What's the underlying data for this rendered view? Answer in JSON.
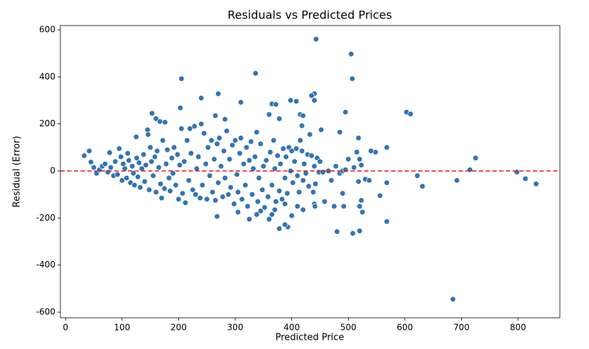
{
  "chart_data": {
    "type": "scatter",
    "title": "Residuals vs Predicted Prices",
    "x_label": "Predicted Price",
    "y_label": "Residual (Error)",
    "color": "#3274b5",
    "xlim": [
      -9,
      874
    ],
    "ylim": [
      -624,
      618
    ],
    "xticks": [
      0,
      100,
      200,
      300,
      400,
      500,
      600,
      700,
      800
    ],
    "yticks": [
      -600,
      -400,
      -200,
      0,
      200,
      400,
      600
    ],
    "reference_line": {
      "y": 0,
      "color": "#e8141a"
    },
    "x": [
      443,
      505,
      336,
      507,
      205,
      270,
      440,
      435,
      240,
      398,
      408,
      440,
      310,
      365,
      372,
      495,
      603,
      610,
      203,
      415,
      420,
      265,
      282,
      378,
      153,
      160,
      167,
      176,
      485,
      452,
      418,
      725,
      715,
      798,
      622,
      813,
      832,
      692,
      631,
      568,
      556,
      568,
      685,
      480,
      508,
      520,
      525,
      520,
      523,
      492,
      475,
      490,
      548,
      540,
      568,
      515,
      518,
      520,
      500,
      510,
      523,
      530,
      537,
      518,
      378,
      393,
      388,
      338,
      325,
      305,
      268,
      360,
      365,
      345,
      400,
      410,
      420,
      440,
      458,
      441,
      388,
      370,
      33,
      42,
      45,
      50,
      55,
      60,
      65,
      70,
      75,
      78,
      80,
      85,
      88,
      92,
      95,
      98,
      100,
      102,
      105,
      108,
      110,
      112,
      115,
      118,
      120,
      122,
      125,
      126,
      128,
      130,
      132,
      135,
      138,
      140,
      142,
      145,
      146,
      148,
      150,
      152,
      155,
      158,
      160,
      162,
      165,
      168,
      170,
      172,
      175,
      178,
      180,
      183,
      185,
      188,
      190,
      192,
      195,
      198,
      200,
      202,
      205,
      207,
      210,
      212,
      215,
      218,
      220,
      222,
      225,
      228,
      230,
      232,
      235,
      238,
      240,
      242,
      245,
      248,
      250,
      252,
      255,
      258,
      260,
      263,
      265,
      268,
      270,
      272,
      275,
      278,
      280,
      282,
      285,
      288,
      290,
      292,
      295,
      298,
      300,
      303,
      305,
      308,
      310,
      312,
      315,
      318,
      320,
      322,
      325,
      328,
      330,
      332,
      335,
      338,
      340,
      342,
      345,
      348,
      350,
      352,
      355,
      358,
      360,
      362,
      365,
      368,
      370,
      372,
      375,
      378,
      380,
      383,
      385,
      388,
      390,
      392,
      395,
      398,
      400,
      402,
      405,
      408,
      410,
      413,
      415,
      418,
      420,
      422,
      425,
      428,
      430,
      432,
      435,
      438,
      440,
      442,
      445,
      448,
      450,
      455,
      465,
      470,
      478,
      485,
      490,
      495
    ],
    "values": [
      560,
      497,
      415,
      392,
      392,
      328,
      328,
      320,
      310,
      300,
      296,
      300,
      292,
      285,
      283,
      250,
      250,
      242,
      268,
      240,
      235,
      235,
      220,
      222,
      245,
      222,
      210,
      207,
      165,
      175,
      192,
      55,
      5,
      -5,
      -20,
      -33,
      -55,
      -40,
      -65,
      -50,
      -105,
      -215,
      -545,
      -258,
      -265,
      -255,
      -175,
      -150,
      -125,
      -150,
      -150,
      -95,
      80,
      85,
      100,
      80,
      140,
      50,
      50,
      15,
      25,
      -35,
      -40,
      -45,
      -245,
      -238,
      -228,
      -185,
      -205,
      -175,
      -193,
      -205,
      -185,
      -170,
      -190,
      -150,
      -165,
      -140,
      -130,
      -150,
      -140,
      -165,
      65,
      85,
      38,
      15,
      -10,
      5,
      20,
      30,
      -5,
      78,
      15,
      -20,
      40,
      -15,
      95,
      60,
      -40,
      30,
      10,
      -30,
      75,
      45,
      -50,
      20,
      -10,
      -60,
      145,
      55,
      -25,
      35,
      -70,
      10,
      70,
      -45,
      25,
      175,
      155,
      -80,
      100,
      40,
      -20,
      60,
      -90,
      85,
      15,
      -55,
      -115,
      130,
      -75,
      30,
      90,
      -30,
      -85,
      55,
      -10,
      100,
      -60,
      70,
      -120,
      25,
      180,
      -95,
      40,
      -135,
      130,
      -40,
      180,
      75,
      -80,
      190,
      -100,
      10,
      60,
      -115,
      200,
      -60,
      160,
      30,
      -120,
      100,
      -20,
      130,
      -90,
      50,
      -125,
      115,
      -50,
      140,
      20,
      -110,
      85,
      -30,
      170,
      -100,
      50,
      -70,
      110,
      -140,
      130,
      -15,
      -90,
      75,
      140,
      -120,
      30,
      -60,
      100,
      -150,
      45,
      125,
      -100,
      10,
      60,
      165,
      -130,
      -30,
      115,
      -80,
      20,
      -155,
      45,
      -110,
      240,
      80,
      -60,
      130,
      10,
      -130,
      65,
      -85,
      30,
      -120,
      95,
      -30,
      60,
      -95,
      100,
      0,
      85,
      -50,
      40,
      95,
      -20,
      -90,
      130,
      85,
      -40,
      30,
      -10,
      70,
      -65,
      155,
      65,
      -90,
      20,
      -55,
      55,
      -5,
      40,
      -5,
      0,
      -40,
      20,
      -10,
      0,
      5
    ]
  }
}
